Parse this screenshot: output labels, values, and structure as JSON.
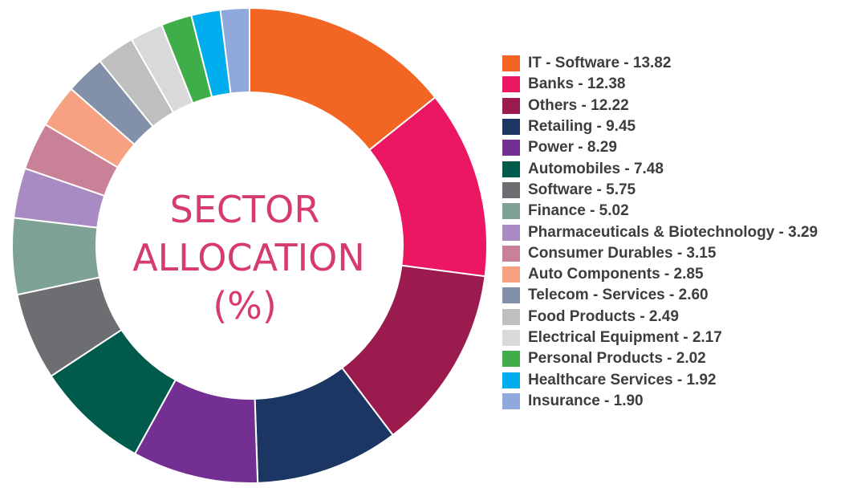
{
  "chart_data": {
    "type": "pie",
    "title": [
      "SECTOR",
      "ALLOCATION",
      "(%)"
    ],
    "categories": [
      "IT - Software",
      "Banks",
      "Others",
      "Retailing",
      "Power",
      "Automobiles",
      "Software",
      "Finance",
      "Pharmaceuticals & Biotechnology",
      "Consumer Durables",
      "Auto Components",
      "Telecom - Services",
      "Food Products",
      "Electrical Equipment",
      "Personal Products",
      "Healthcare Services",
      "Insurance"
    ],
    "values": [
      13.82,
      12.38,
      12.22,
      9.45,
      8.29,
      7.48,
      5.75,
      5.02,
      3.29,
      3.15,
      2.85,
      2.6,
      2.49,
      2.17,
      2.02,
      1.92,
      1.9
    ],
    "value_labels": [
      "13.82",
      "12.38",
      "12.22",
      "9.45",
      "8.29",
      "7.48",
      "5.75",
      "5.02",
      "3.29",
      "3.15",
      "2.85",
      "2.60",
      "2.49",
      "2.17",
      "2.02",
      "1.92",
      "1.90"
    ],
    "colors": [
      "#f26522",
      "#ec1763",
      "#9b1b4e",
      "#1c3664",
      "#742f93",
      "#015b4c",
      "#6d6e71",
      "#7ea396",
      "#a98bc3",
      "#c98198",
      "#f6a182",
      "#8290a9",
      "#bfbfbf",
      "#d9d9d9",
      "#3fae49",
      "#00aeef",
      "#8fa9dc"
    ],
    "title_color": "#d63a6e",
    "legend_position": "right",
    "style": "donut"
  }
}
